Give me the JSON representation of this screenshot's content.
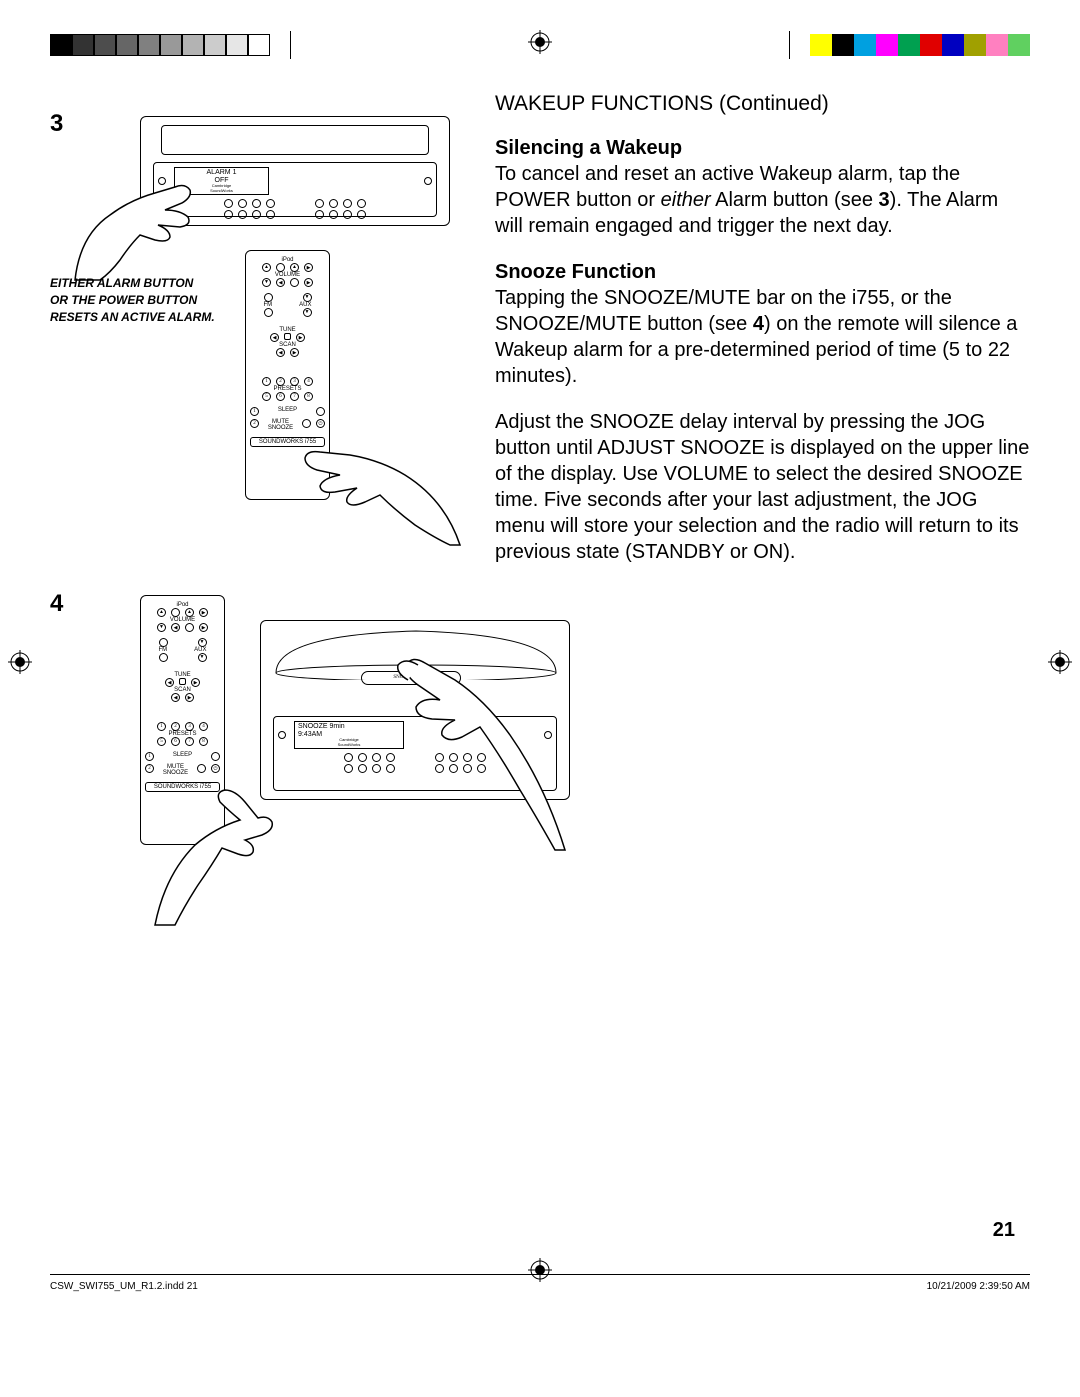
{
  "colorbar": {
    "left_swatches": [
      "#000000",
      "#333333",
      "#4d4d4d",
      "#666666",
      "#808080",
      "#999999",
      "#b3b3b3",
      "#cccccc",
      "#e6e6e6",
      "#ffffff"
    ],
    "right_swatches": [
      "#ffff00",
      "#000000",
      "#00a0e0",
      "#ff00ff",
      "#00a050",
      "#e00000",
      "#0000c0",
      "#a0a000",
      "#ff80c0",
      "#60d060"
    ]
  },
  "header": {
    "title": "WAKEUP FUNCTIONS (Continued)"
  },
  "section1": {
    "heading": "Silencing a Wakeup",
    "body_pre": "To cancel and reset an active Wakeup alarm, tap the POWER button or ",
    "body_em": "either",
    "body_mid": " Alarm button (see ",
    "body_ref": "3",
    "body_post": "). The Alarm will remain engaged and trigger the next day."
  },
  "section2": {
    "heading": "Snooze Function",
    "p1_pre": "Tapping the SNOOZE/MUTE bar on the i755, or the SNOOZE/MUTE button (see ",
    "p1_ref": "4",
    "p1_post": ") on the remote will silence a Wakeup alarm for a pre-determined period of time (5 to 22 minutes).",
    "p2": "Adjust the SNOOZE delay interval by pressing the JOG button until ADJUST SNOOZE is displayed on the upper line of the display. Use VOLUME to select the desired SNOOZE time. Five seconds after your last adjustment, the JOG menu will store your selection and the radio will return to its previous state (STANDBY or ON)."
  },
  "steps": {
    "s3": "3",
    "s4": "4"
  },
  "caption3": {
    "l1": "EITHER ALARM BUTTON",
    "l2": "OR THE POWER BUTTON",
    "l3": "RESETS AN ACTIVE ALARM."
  },
  "device3_display": {
    "l1": "ALARM 1",
    "l2": "OFF"
  },
  "device4_display": {
    "l1": "SNOOZE 9min",
    "l2": "9:43AM"
  },
  "device4_bar": "SNOOZE/MUTE",
  "remote": {
    "labels": {
      "ipod": "iPod",
      "volume": "VOLUME",
      "fm": "FM",
      "am": "AM",
      "aux": "AUX",
      "tune": "TUNE",
      "scan": "SCAN",
      "presets": "PRESETS",
      "sleep": "SLEEP",
      "mute": "MUTE",
      "snooze": "SNOOZE",
      "brand": "SOUNDWORKS i755"
    },
    "presets": [
      "1",
      "2",
      "3",
      "4",
      "5",
      "6",
      "7",
      "8"
    ]
  },
  "page_number": "21",
  "footer": {
    "left": "CSW_SWI755_UM_R1.2.indd   21",
    "right": "10/21/2009   2:39:50 AM"
  }
}
